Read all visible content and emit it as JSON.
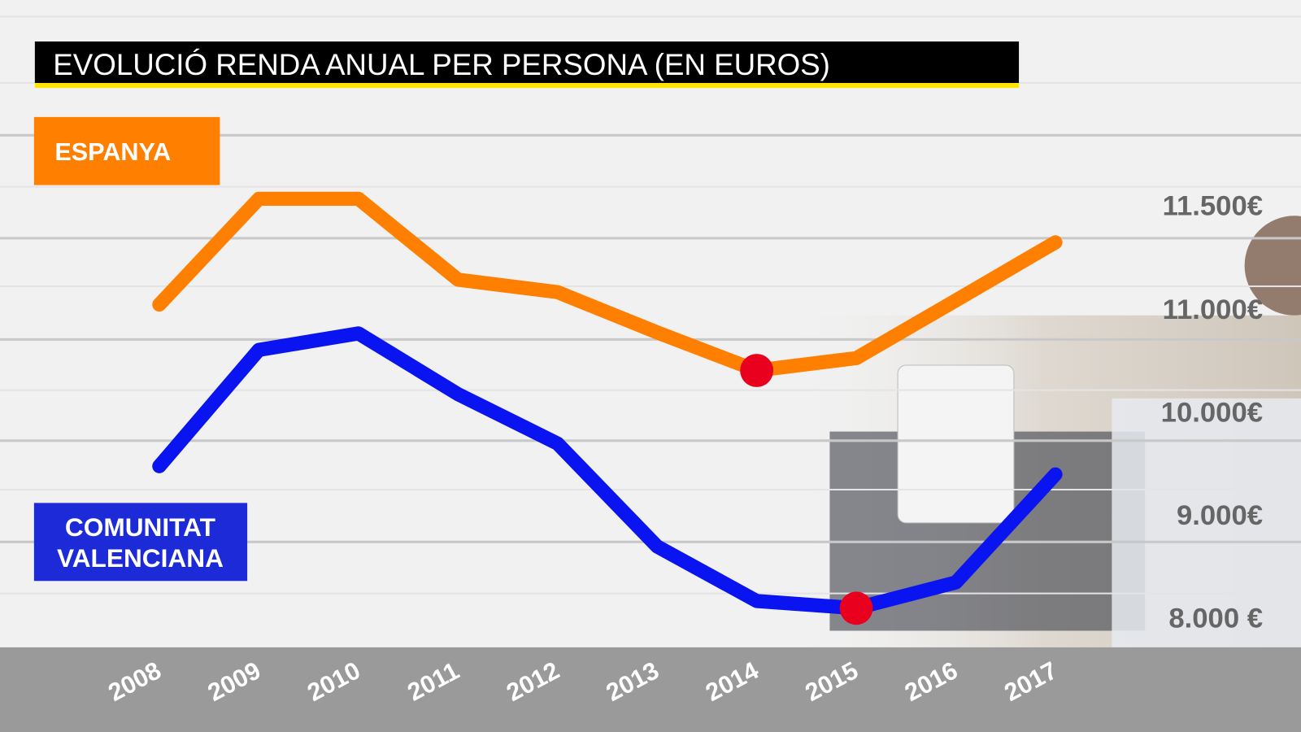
{
  "chart_data": {
    "type": "line",
    "title": "EVOLUCIÓ RENDA ANUAL PER PERSONA (EN EUROS)",
    "categories": [
      "2008",
      "2009",
      "2010",
      "2011",
      "2012",
      "2013",
      "2014",
      "2015",
      "2016",
      "2017"
    ],
    "series": [
      {
        "name": "ESPANYA",
        "color": "#ff8000",
        "values": [
          11020,
          11530,
          11530,
          11140,
          11080,
          10770,
          10400,
          10520,
          11040,
          11320
        ]
      },
      {
        "name": "COMUNITAT VALENCIANA",
        "color": "#0a14f0",
        "values": [
          9470,
          10600,
          10760,
          10170,
          9690,
          8690,
          8160,
          8090,
          8340,
          9390
        ]
      }
    ],
    "y_ticks": [
      {
        "value": 11500,
        "label": "11.500€"
      },
      {
        "value": 11000,
        "label": "11.000€"
      },
      {
        "value": 10000,
        "label": "10.000€"
      },
      {
        "value": 9000,
        "label": "9.000€"
      },
      {
        "value": 8000,
        "label": "8.000 €"
      }
    ],
    "highlight_markers": [
      {
        "series": "ESPANYA",
        "x": "2014",
        "color": "#e8001e"
      },
      {
        "series": "COMUNITAT VALENCIANA",
        "x": "2015",
        "color": "#e8001e"
      }
    ],
    "grid": true,
    "legend_placement": "left",
    "colors": {
      "title_bg": "#000000",
      "title_underline": "#ffe600",
      "x_axis_band": "#9a9a9a"
    }
  }
}
